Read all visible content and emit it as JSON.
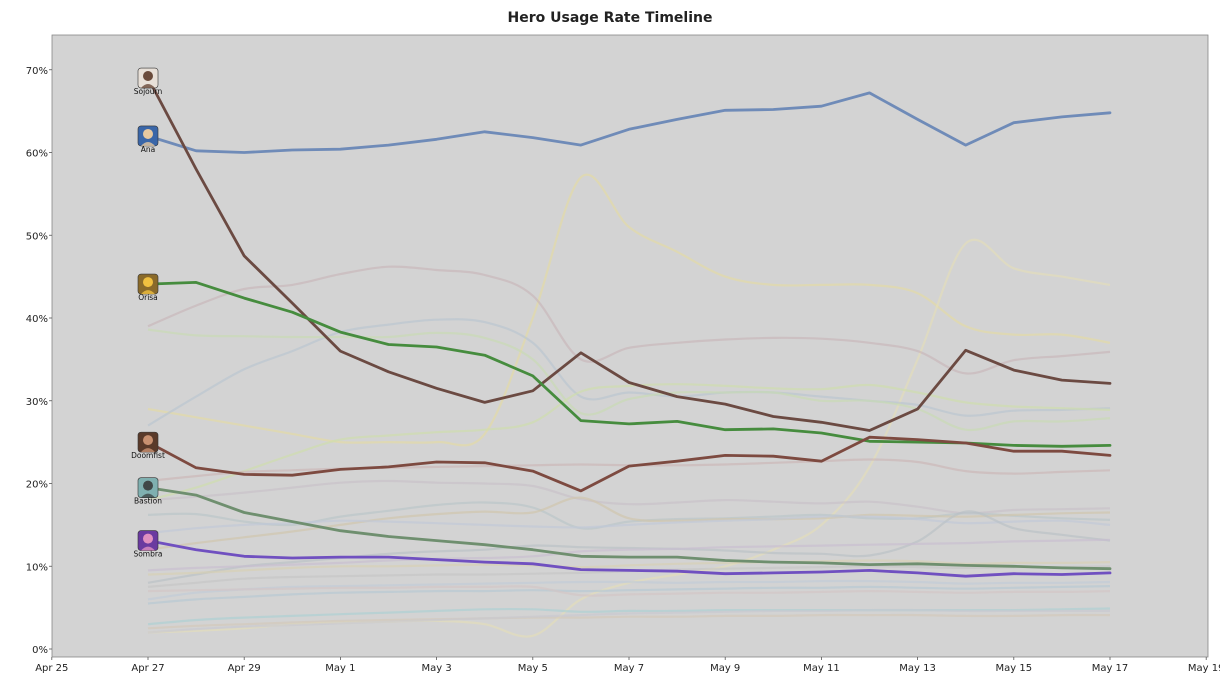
{
  "chart_data": {
    "type": "line",
    "title": "Hero Usage Rate Timeline",
    "xlabel": "",
    "ylabel": "",
    "x_tick_labels": [
      "Apr 25",
      "Apr 27",
      "Apr 29",
      "May 1",
      "May 3",
      "May 5",
      "May 7",
      "May 9",
      "May 11",
      "May 13",
      "May 15",
      "May 17",
      "May 19"
    ],
    "y_tick_labels": [
      "0%",
      "10%",
      "20%",
      "30%",
      "40%",
      "50%",
      "60%",
      "70%"
    ],
    "ylim": [
      0,
      0.75
    ],
    "grid": false,
    "background": "#d3d3d3",
    "x": [
      "Apr 27",
      "Apr 28",
      "Apr 29",
      "Apr 30",
      "May 1",
      "May 2",
      "May 3",
      "May 4",
      "May 5",
      "May 6",
      "May 7",
      "May 8",
      "May 9",
      "May 10",
      "May 11",
      "May 12",
      "May 13",
      "May 14",
      "May 15",
      "May 16",
      "May 17"
    ],
    "series": [
      {
        "name": "Ana",
        "color": "#6f8bb8",
        "highlight": true,
        "values": [
          0.62,
          0.602,
          0.6,
          0.603,
          0.604,
          0.609,
          0.616,
          0.625,
          0.618,
          0.609,
          0.628,
          0.64,
          0.651,
          0.652,
          0.656,
          0.672,
          0.64,
          0.609,
          0.636,
          0.643,
          0.648
        ]
      },
      {
        "name": "Sojourn",
        "color": "#6b4a42",
        "highlight": true,
        "values": [
          0.69,
          0.58,
          0.475,
          0.418,
          0.36,
          0.335,
          0.315,
          0.298,
          0.312,
          0.358,
          0.322,
          0.305,
          0.296,
          0.281,
          0.274,
          0.264,
          0.29,
          0.361,
          0.337,
          0.325,
          0.321
        ]
      },
      {
        "name": "Orisa",
        "color": "#468c3e",
        "highlight": true,
        "values": [
          0.441,
          0.443,
          0.424,
          0.407,
          0.383,
          0.368,
          0.365,
          0.355,
          0.33,
          0.276,
          0.272,
          0.275,
          0.265,
          0.266,
          0.261,
          0.251,
          0.25,
          0.249,
          0.246,
          0.245,
          0.246
        ]
      },
      {
        "name": "Doomfist",
        "color": "#7d4a40",
        "highlight": true,
        "values": [
          0.25,
          0.219,
          0.211,
          0.21,
          0.217,
          0.22,
          0.226,
          0.225,
          0.215,
          0.191,
          0.221,
          0.227,
          0.234,
          0.233,
          0.227,
          0.256,
          0.253,
          0.249,
          0.239,
          0.239,
          0.234
        ]
      },
      {
        "name": "Bastion",
        "color": "#6f8f6f",
        "highlight": true,
        "values": [
          0.195,
          0.186,
          0.165,
          0.154,
          0.143,
          0.136,
          0.131,
          0.126,
          0.12,
          0.112,
          0.111,
          0.111,
          0.107,
          0.105,
          0.104,
          0.102,
          0.103,
          0.101,
          0.1,
          0.098,
          0.097
        ]
      },
      {
        "name": "Sombra",
        "color": "#7050c0",
        "highlight": true,
        "values": [
          0.131,
          0.12,
          0.112,
          0.11,
          0.111,
          0.111,
          0.108,
          0.105,
          0.103,
          0.096,
          0.095,
          0.094,
          0.091,
          0.092,
          0.093,
          0.095,
          0.092,
          0.088,
          0.091,
          0.09,
          0.092
        ]
      },
      {
        "color": "#e6dca0",
        "highlight": false,
        "values": [
          0.29,
          0.28,
          0.27,
          0.26,
          0.25,
          0.25,
          0.25,
          0.26,
          0.4,
          0.57,
          0.51,
          0.48,
          0.45,
          0.44,
          0.44,
          0.44,
          0.43,
          0.39,
          0.38,
          0.38,
          0.37
        ]
      },
      {
        "color": "#e6e0b8",
        "highlight": false,
        "values": [
          0.02,
          0.022,
          0.025,
          0.03,
          0.032,
          0.033,
          0.034,
          0.03,
          0.016,
          0.06,
          0.08,
          0.09,
          0.1,
          0.12,
          0.15,
          0.22,
          0.35,
          0.49,
          0.46,
          0.45,
          0.44
        ]
      },
      {
        "color": "#c8b4b8",
        "highlight": false,
        "values": [
          0.39,
          0.415,
          0.435,
          0.44,
          0.453,
          0.462,
          0.458,
          0.452,
          0.427,
          0.35,
          0.364,
          0.37,
          0.374,
          0.376,
          0.375,
          0.37,
          0.36,
          0.333,
          0.349,
          0.354,
          0.359
        ]
      },
      {
        "color": "#b8c4d0",
        "highlight": false,
        "values": [
          0.27,
          0.305,
          0.338,
          0.36,
          0.383,
          0.392,
          0.398,
          0.395,
          0.37,
          0.305,
          0.31,
          0.305,
          0.31,
          0.31,
          0.305,
          0.3,
          0.295,
          0.282,
          0.288,
          0.289,
          0.291
        ]
      },
      {
        "color": "#c8dcb0",
        "highlight": false,
        "values": [
          0.386,
          0.379,
          0.378,
          0.377,
          0.377,
          0.377,
          0.382,
          0.376,
          0.35,
          0.285,
          0.302,
          0.31,
          0.31,
          0.31,
          0.3,
          0.3,
          0.29,
          0.265,
          0.275,
          0.275,
          0.279
        ]
      },
      {
        "color": "#cfe0a8",
        "highlight": false,
        "values": [
          0.18,
          0.195,
          0.215,
          0.235,
          0.253,
          0.258,
          0.262,
          0.265,
          0.274,
          0.311,
          0.318,
          0.32,
          0.318,
          0.315,
          0.314,
          0.319,
          0.31,
          0.298,
          0.293,
          0.291,
          0.289
        ]
      },
      {
        "color": "#ccb4b4",
        "highlight": false,
        "values": [
          0.203,
          0.209,
          0.214,
          0.216,
          0.218,
          0.219,
          0.22,
          0.221,
          0.222,
          0.223,
          0.222,
          0.222,
          0.223,
          0.225,
          0.227,
          0.229,
          0.226,
          0.215,
          0.212,
          0.214,
          0.216
        ]
      },
      {
        "color": "#c8c0c8",
        "highlight": false,
        "values": [
          0.18,
          0.184,
          0.189,
          0.195,
          0.201,
          0.203,
          0.201,
          0.2,
          0.197,
          0.181,
          0.175,
          0.177,
          0.18,
          0.178,
          0.176,
          0.178,
          0.172,
          0.164,
          0.168,
          0.169,
          0.17
        ]
      },
      {
        "color": "#b8c4c8",
        "highlight": false,
        "values": [
          0.162,
          0.163,
          0.154,
          0.15,
          0.16,
          0.167,
          0.174,
          0.177,
          0.171,
          0.146,
          0.154,
          0.157,
          0.158,
          0.16,
          0.162,
          0.158,
          0.158,
          0.164,
          0.161,
          0.158,
          0.156
        ]
      },
      {
        "color": "#d0c4a8",
        "highlight": false,
        "values": [
          0.12,
          0.128,
          0.135,
          0.142,
          0.15,
          0.158,
          0.163,
          0.166,
          0.165,
          0.183,
          0.158,
          0.155,
          0.157,
          0.157,
          0.158,
          0.162,
          0.161,
          0.16,
          0.162,
          0.164,
          0.165
        ]
      },
      {
        "color": "#c0c8d8",
        "highlight": false,
        "values": [
          0.14,
          0.146,
          0.15,
          0.152,
          0.155,
          0.154,
          0.152,
          0.15,
          0.148,
          0.147,
          0.15,
          0.153,
          0.155,
          0.157,
          0.16,
          0.16,
          0.157,
          0.152,
          0.154,
          0.155,
          0.15
        ]
      },
      {
        "color": "#b8c0c4",
        "highlight": false,
        "values": [
          0.08,
          0.09,
          0.1,
          0.105,
          0.11,
          0.115,
          0.118,
          0.12,
          0.125,
          0.123,
          0.122,
          0.121,
          0.119,
          0.116,
          0.115,
          0.113,
          0.13,
          0.166,
          0.146,
          0.138,
          0.131
        ]
      },
      {
        "color": "#c8bcd0",
        "highlight": false,
        "values": [
          0.095,
          0.098,
          0.1,
          0.102,
          0.104,
          0.107,
          0.109,
          0.11,
          0.112,
          0.118,
          0.12,
          0.121,
          0.123,
          0.124,
          0.125,
          0.126,
          0.127,
          0.128,
          0.13,
          0.131,
          0.132
        ]
      },
      {
        "color": "#d8d0b0",
        "highlight": false,
        "values": [
          0.09,
          0.092,
          0.095,
          0.098,
          0.1,
          0.1,
          0.101,
          0.102,
          0.101,
          0.099,
          0.101,
          0.103,
          0.104,
          0.105,
          0.106,
          0.107,
          0.106,
          0.103,
          0.104,
          0.104,
          0.105
        ]
      },
      {
        "color": "#c4c4c4",
        "highlight": false,
        "values": [
          0.075,
          0.08,
          0.085,
          0.087,
          0.088,
          0.089,
          0.09,
          0.09,
          0.091,
          0.092,
          0.094,
          0.096,
          0.097,
          0.098,
          0.099,
          0.1,
          0.099,
          0.098,
          0.099,
          0.099,
          0.1
        ]
      },
      {
        "color": "#c0ccd8",
        "highlight": false,
        "values": [
          0.06,
          0.068,
          0.072,
          0.075,
          0.076,
          0.077,
          0.078,
          0.079,
          0.08,
          0.081,
          0.081,
          0.08,
          0.081,
          0.081,
          0.082,
          0.082,
          0.081,
          0.079,
          0.08,
          0.08,
          0.081
        ]
      },
      {
        "color": "#b4c8d4",
        "highlight": false,
        "values": [
          0.055,
          0.06,
          0.063,
          0.066,
          0.068,
          0.069,
          0.07,
          0.07,
          0.071,
          0.07,
          0.071,
          0.072,
          0.073,
          0.074,
          0.074,
          0.075,
          0.074,
          0.073,
          0.074,
          0.075,
          0.076
        ]
      },
      {
        "color": "#d4c4c4",
        "highlight": false,
        "values": [
          0.07,
          0.071,
          0.072,
          0.073,
          0.074,
          0.074,
          0.075,
          0.075,
          0.075,
          0.065,
          0.066,
          0.067,
          0.068,
          0.068,
          0.069,
          0.07,
          0.069,
          0.068,
          0.069,
          0.069,
          0.07
        ]
      },
      {
        "color": "#a8d0d4",
        "highlight": false,
        "values": [
          0.03,
          0.035,
          0.038,
          0.04,
          0.042,
          0.044,
          0.046,
          0.048,
          0.048,
          0.045,
          0.046,
          0.046,
          0.047,
          0.047,
          0.047,
          0.047,
          0.047,
          0.047,
          0.047,
          0.048,
          0.049
        ]
      },
      {
        "color": "#d4c8b8",
        "highlight": false,
        "values": [
          0.025,
          0.028,
          0.03,
          0.032,
          0.034,
          0.035,
          0.036,
          0.037,
          0.038,
          0.038,
          0.039,
          0.039,
          0.04,
          0.04,
          0.041,
          0.041,
          0.041,
          0.04,
          0.04,
          0.041,
          0.041
        ]
      },
      {
        "color": "#c8c8d0",
        "highlight": false,
        "values": [
          0.02,
          0.024,
          0.027,
          0.029,
          0.031,
          0.033,
          0.035,
          0.037,
          0.039,
          0.041,
          0.043,
          0.044,
          0.045,
          0.046,
          0.046,
          0.047,
          0.047,
          0.046,
          0.046,
          0.046,
          0.046
        ]
      }
    ],
    "highlight_labels": [
      {
        "name": "Sojourn",
        "value": 0.69,
        "icon": "sojourn-portrait-icon"
      },
      {
        "name": "Ana",
        "value": 0.62,
        "icon": "ana-portrait-icon"
      },
      {
        "name": "Orisa",
        "value": 0.441,
        "icon": "orisa-portrait-icon"
      },
      {
        "name": "Doomfist",
        "value": 0.25,
        "icon": "doomfist-portrait-icon"
      },
      {
        "name": "Bastion",
        "value": 0.195,
        "icon": "bastion-portrait-icon"
      },
      {
        "name": "Sombra",
        "value": 0.131,
        "icon": "sombra-portrait-icon"
      }
    ]
  }
}
